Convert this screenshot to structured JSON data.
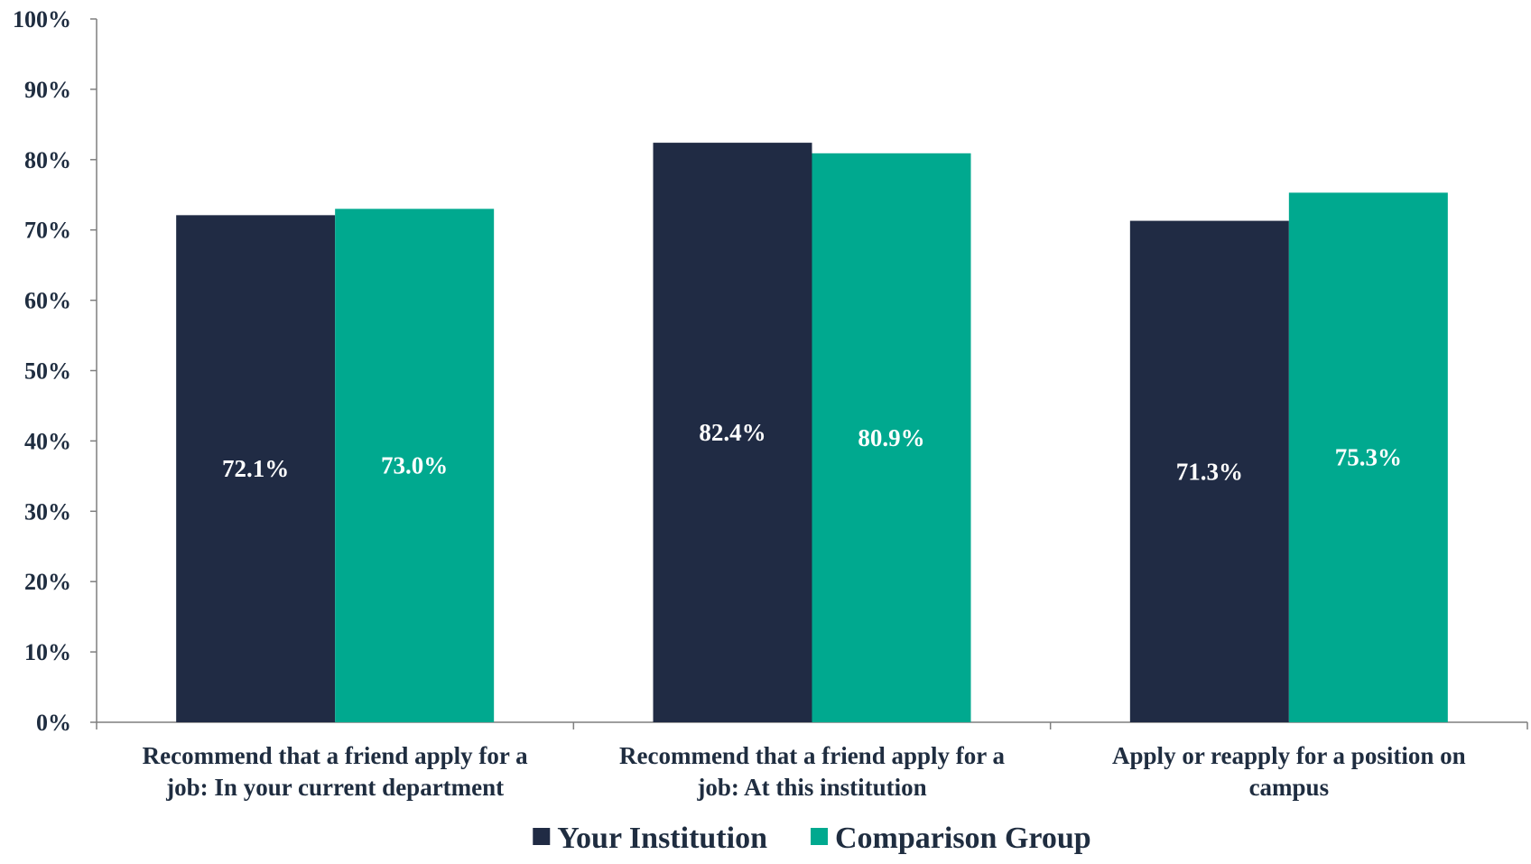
{
  "chart_data": {
    "type": "bar",
    "categories": [
      [
        "Recommend that a friend apply for a",
        "job: In your current department"
      ],
      [
        "Recommend that a friend apply for a",
        "job: At this institution"
      ],
      [
        "Apply or reapply for a position on",
        "campus"
      ]
    ],
    "series": [
      {
        "name": "Your Institution",
        "color": "#202b44",
        "values": [
          72.1,
          82.4,
          71.3
        ],
        "labels": [
          "72.1%",
          "82.4%",
          "71.3%"
        ]
      },
      {
        "name": "Comparison Group",
        "color": "#00a98f",
        "values": [
          73.0,
          80.9,
          75.3
        ],
        "labels": [
          "73.0%",
          "80.9%",
          "75.3%"
        ]
      }
    ],
    "ylim": [
      0,
      100
    ],
    "yticks": [
      "0%",
      "10%",
      "20%",
      "30%",
      "40%",
      "50%",
      "60%",
      "70%",
      "80%",
      "90%",
      "100%"
    ],
    "grid": false,
    "legend_position": "bottom-center",
    "axis_color": "#7f7f7f",
    "text_color": "#1f2d40"
  }
}
